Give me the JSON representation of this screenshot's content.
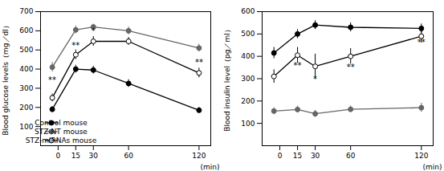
{
  "chart_data": [
    {
      "type": "line",
      "ylabel": "Blood glucose levels（mg／dl）",
      "xlabel": "(min)",
      "x": [
        -5,
        15,
        30,
        60,
        120
      ],
      "xlim": [
        -15,
        130
      ],
      "xticks": [
        0,
        15,
        30,
        60,
        120
      ],
      "ylim": [
        0,
        700
      ],
      "yticks": [
        100,
        200,
        300,
        400,
        500,
        600,
        700
      ],
      "series": [
        {
          "name": "Control mouse",
          "color": "black",
          "marker": "circle",
          "values": [
            190,
            400,
            395,
            325,
            185
          ],
          "errors": [
            15,
            20,
            20,
            20,
            15
          ]
        },
        {
          "name": "STZ-NT mouse",
          "color": "#666666",
          "marker": "circle",
          "values": [
            410,
            605,
            620,
            600,
            510
          ],
          "errors": [
            25,
            20,
            15,
            20,
            20
          ]
        },
        {
          "name": "STZ-miRNAs mouse",
          "color": "black",
          "marker": "circle_open",
          "values": [
            250,
            475,
            545,
            545,
            380
          ],
          "errors": [
            20,
            25,
            25,
            20,
            25
          ]
        }
      ],
      "annotations": [
        {
          "text": "**",
          "x": -5,
          "y": 330
        },
        {
          "text": "**",
          "x": 15,
          "y": 510
        },
        {
          "text": "*",
          "x": 30,
          "y": 585
        },
        {
          "text": "**",
          "x": 120,
          "y": 420
        }
      ],
      "legend": "lower left"
    },
    {
      "type": "line",
      "ylabel": "Blood insulin level（pg／ml）",
      "xlabel": "(min)",
      "x": [
        -5,
        15,
        30,
        60,
        120
      ],
      "xlim": [
        -15,
        130
      ],
      "xticks": [
        0,
        15,
        30,
        60,
        120
      ],
      "ylim": [
        0,
        600
      ],
      "yticks": [
        100,
        200,
        300,
        400,
        500,
        600
      ],
      "series": [
        {
          "name": "Control mouse",
          "color": "black",
          "marker": "circle",
          "values": [
            415,
            500,
            540,
            530,
            525
          ],
          "errors": [
            25,
            20,
            20,
            20,
            20
          ]
        },
        {
          "name": "STZ-NT mouse",
          "color": "#666666",
          "marker": "circle",
          "values": [
            155,
            162,
            143,
            163,
            170
          ],
          "errors": [
            15,
            15,
            15,
            15,
            20
          ]
        },
        {
          "name": "STZ-miRNAs mouse",
          "color": "black",
          "marker": "circle_open",
          "values": [
            310,
            405,
            355,
            400,
            490
          ],
          "errors": [
            30,
            35,
            55,
            35,
            30
          ]
        }
      ],
      "annotations": [
        {
          "text": "**",
          "x": 15,
          "y": 345
        },
        {
          "text": "*",
          "x": 30,
          "y": 285
        },
        {
          "text": "**",
          "x": 60,
          "y": 340
        },
        {
          "text": "**",
          "x": 120,
          "y": 450
        }
      ]
    }
  ]
}
